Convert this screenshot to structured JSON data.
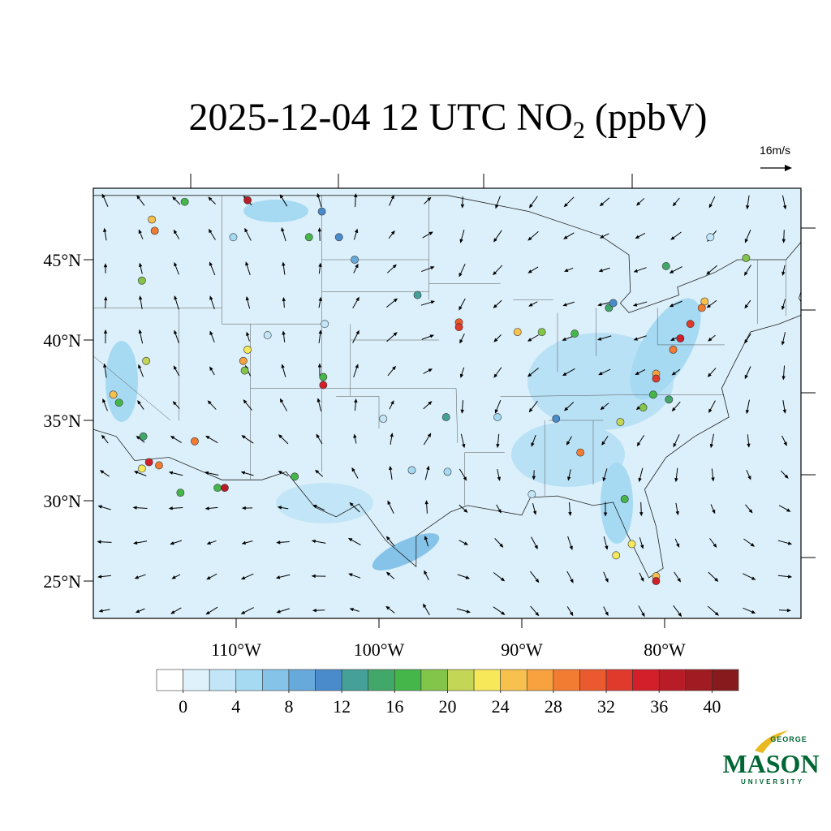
{
  "title": {
    "main": "2025-12-04 12 UTC NO",
    "sub": "2",
    "end": " (ppbV)"
  },
  "wind_reference": "16m/s",
  "map": {
    "lat_ticks": [
      {
        "value": 45,
        "label": "45°N"
      },
      {
        "value": 40,
        "label": "40°N"
      },
      {
        "value": 35,
        "label": "35°N"
      },
      {
        "value": 30,
        "label": "30°N"
      },
      {
        "value": 25,
        "label": "25°N"
      }
    ],
    "lon_ticks": [
      {
        "value": -110,
        "label": "110°W"
      },
      {
        "value": -100,
        "label": "100°W"
      },
      {
        "value": -90,
        "label": "90°W"
      },
      {
        "value": -80,
        "label": "80°W"
      }
    ]
  },
  "colorbar": {
    "colors": [
      "#ffffff",
      "#dff2fb",
      "#c2e6f7",
      "#a6daf3",
      "#86c3e9",
      "#68a9dc",
      "#4a8ccb",
      "#45a09a",
      "#42a86a",
      "#45b64a",
      "#83c54b",
      "#c4d655",
      "#f7e85a",
      "#f8c14e",
      "#f7a13f",
      "#f27c32",
      "#ea5a2e",
      "#e03a2c",
      "#d21f2a",
      "#b81d27",
      "#a01b22",
      "#861a1c"
    ],
    "ticks": [
      0,
      4,
      8,
      12,
      16,
      20,
      24,
      28,
      32,
      36,
      40
    ]
  },
  "stations": [
    {
      "lon": -109.2,
      "lat": 48.7,
      "value": 37
    },
    {
      "lon": -115.9,
      "lat": 47.5,
      "value": 24
    },
    {
      "lon": -115.7,
      "lat": 46.8,
      "value": 28
    },
    {
      "lon": -116.6,
      "lat": 43.7,
      "value": 18
    },
    {
      "lon": -104.9,
      "lat": 46.4,
      "value": 17
    },
    {
      "lon": -102.8,
      "lat": 46.4,
      "value": 10
    },
    {
      "lon": -104.0,
      "lat": 48.0,
      "value": 10
    },
    {
      "lon": -110.2,
      "lat": 46.4,
      "value": 4
    },
    {
      "lon": -101.7,
      "lat": 45.0,
      "value": 8
    },
    {
      "lon": -97.3,
      "lat": 42.8,
      "value": 12
    },
    {
      "lon": -94.4,
      "lat": 41.1,
      "value": 30
    },
    {
      "lon": -94.4,
      "lat": 40.8,
      "value": 33
    },
    {
      "lon": -90.3,
      "lat": 40.5,
      "value": 24
    },
    {
      "lon": -88.6,
      "lat": 40.5,
      "value": 18
    },
    {
      "lon": -86.3,
      "lat": 40.4,
      "value": 17
    },
    {
      "lon": -83.9,
      "lat": 42.0,
      "value": 14
    },
    {
      "lon": -83.6,
      "lat": 42.3,
      "value": 10
    },
    {
      "lon": -79.9,
      "lat": 44.6,
      "value": 15
    },
    {
      "lon": -77.2,
      "lat": 42.4,
      "value": 24
    },
    {
      "lon": -77.4,
      "lat": 42.0,
      "value": 29
    },
    {
      "lon": -78.2,
      "lat": 41.0,
      "value": 32
    },
    {
      "lon": -78.9,
      "lat": 40.1,
      "value": 35
    },
    {
      "lon": -79.4,
      "lat": 39.4,
      "value": 28
    },
    {
      "lon": -80.6,
      "lat": 37.9,
      "value": 27
    },
    {
      "lon": -80.6,
      "lat": 37.6,
      "value": 33
    },
    {
      "lon": -80.8,
      "lat": 36.6,
      "value": 16
    },
    {
      "lon": -79.7,
      "lat": 36.3,
      "value": 15
    },
    {
      "lon": -81.5,
      "lat": 35.8,
      "value": 18
    },
    {
      "lon": -83.1,
      "lat": 34.9,
      "value": 21
    },
    {
      "lon": -85.9,
      "lat": 33.0,
      "value": 29
    },
    {
      "lon": -82.8,
      "lat": 30.1,
      "value": 17
    },
    {
      "lon": -82.3,
      "lat": 27.3,
      "value": 23
    },
    {
      "lon": -83.4,
      "lat": 26.6,
      "value": 22
    },
    {
      "lon": -80.6,
      "lat": 25.3,
      "value": 24
    },
    {
      "lon": -80.6,
      "lat": 25.0,
      "value": 34
    },
    {
      "lon": -87.6,
      "lat": 35.1,
      "value": 11
    },
    {
      "lon": -91.7,
      "lat": 35.2,
      "value": 4
    },
    {
      "lon": -95.3,
      "lat": 35.2,
      "value": 13
    },
    {
      "lon": -95.2,
      "lat": 31.8,
      "value": 5
    },
    {
      "lon": -97.7,
      "lat": 31.9,
      "value": 5
    },
    {
      "lon": -103.9,
      "lat": 37.7,
      "value": 16
    },
    {
      "lon": -103.9,
      "lat": 37.2,
      "value": 35
    },
    {
      "lon": -109.5,
      "lat": 38.7,
      "value": 27
    },
    {
      "lon": -109.4,
      "lat": 38.1,
      "value": 18
    },
    {
      "lon": -109.2,
      "lat": 39.4,
      "value": 23
    },
    {
      "lon": -112.9,
      "lat": 33.7,
      "value": 28
    },
    {
      "lon": -111.3,
      "lat": 30.8,
      "value": 17
    },
    {
      "lon": -110.8,
      "lat": 30.8,
      "value": 36
    },
    {
      "lon": -113.9,
      "lat": 30.5,
      "value": 17
    },
    {
      "lon": -116.1,
      "lat": 32.4,
      "value": 34
    },
    {
      "lon": -115.4,
      "lat": 32.2,
      "value": 28
    },
    {
      "lon": -116.6,
      "lat": 32.0,
      "value": 23
    },
    {
      "lon": -118.6,
      "lat": 36.6,
      "value": 24
    },
    {
      "lon": -118.2,
      "lat": 36.1,
      "value": 16
    },
    {
      "lon": -116.5,
      "lat": 34.0,
      "value": 14
    },
    {
      "lon": -105.9,
      "lat": 31.5,
      "value": 17
    },
    {
      "lon": -107.8,
      "lat": 40.3,
      "value": 2
    },
    {
      "lon": -103.8,
      "lat": 41.0,
      "value": 2
    },
    {
      "lon": -99.7,
      "lat": 35.1,
      "value": 2
    },
    {
      "lon": -89.3,
      "lat": 30.4,
      "value": 2
    },
    {
      "lon": -76.8,
      "lat": 46.4,
      "value": 3
    },
    {
      "lon": -74.3,
      "lat": 45.1,
      "value": 19
    },
    {
      "lon": -113.6,
      "lat": 48.6,
      "value": 16
    },
    {
      "lon": -116.3,
      "lat": 38.7,
      "value": 21
    }
  ],
  "logo": {
    "top": "GEORGE",
    "main": "MASON",
    "bottom": "UNIVERSITY"
  }
}
